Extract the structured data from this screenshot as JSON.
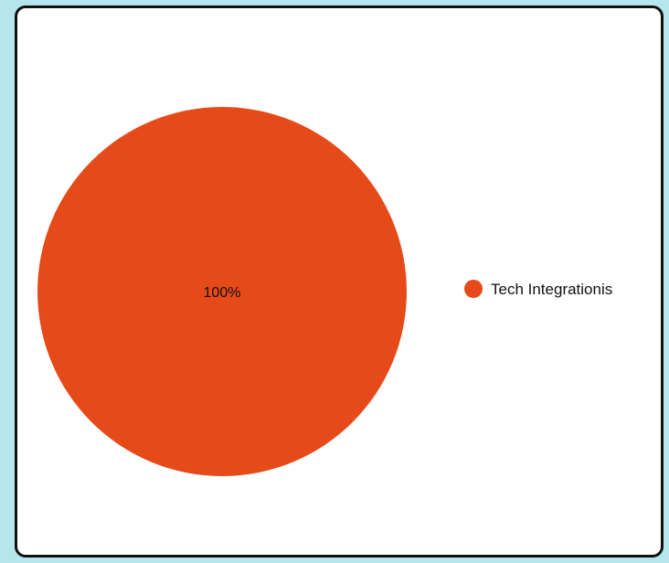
{
  "chart_data": {
    "type": "pie",
    "slices": [
      {
        "label": "Tech Integrationis",
        "value": 100,
        "percent_label": "100%"
      }
    ],
    "colors": [
      "#e64a19"
    ],
    "legend_position": "right",
    "title": ""
  }
}
